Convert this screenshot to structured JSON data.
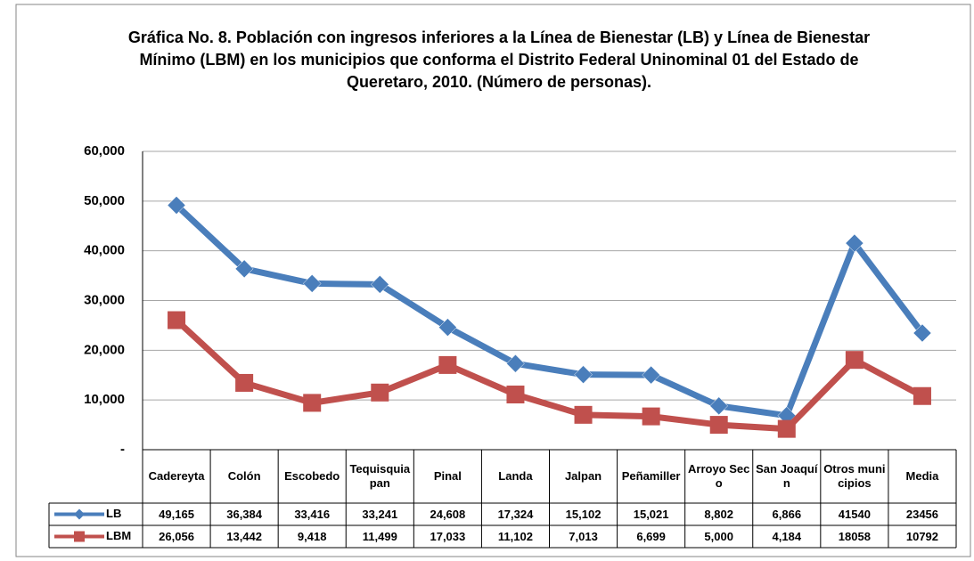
{
  "chart_data": {
    "type": "line",
    "title": "Gráfica No. 8. Población con ingresos inferiores a la  Línea de Bienestar (LB) y Línea de Bienestar Mínimo (LBM) en los municipios que conforma el Distrito Federal Uninominal  01 del Estado de Queretaro, 2010. (Número de personas).",
    "categories": [
      "Cadereyta",
      "Colón",
      "Escobedo",
      "Tequisquiapan",
      "Pinal",
      "Landa",
      "Jalpan",
      "Peñamiller",
      "Arroyo Seco",
      "San Joaquín",
      "Otros municipios",
      "Media"
    ],
    "series": [
      {
        "name": "LB",
        "color": "#4a7ebb",
        "values": [
          49165,
          36384,
          33416,
          33241,
          24608,
          17324,
          15102,
          15021,
          8802,
          6866,
          41540,
          23456
        ],
        "value_labels": [
          "49,165",
          "36,384",
          "33,416",
          "33,241",
          "24,608",
          "17,324",
          "15,102",
          "15,021",
          "8,802",
          "6,866",
          "41540",
          "23456"
        ]
      },
      {
        "name": "LBM",
        "color": "#c0504d",
        "values": [
          26056,
          13442,
          9418,
          11499,
          17033,
          11102,
          7013,
          6699,
          5000,
          4184,
          18058,
          10792
        ],
        "value_labels": [
          "26,056",
          "13,442",
          "9,418",
          "11,499",
          "17,033",
          "11,102",
          "7,013",
          "6,699",
          "5,000",
          "4,184",
          "18058",
          "10792"
        ]
      }
    ],
    "ylim": [
      0,
      60000
    ],
    "yticks": [
      {
        "value": 0,
        "label": "-"
      },
      {
        "value": 10000,
        "label": "10,000"
      },
      {
        "value": 20000,
        "label": "20,000"
      },
      {
        "value": 30000,
        "label": "30,000"
      },
      {
        "value": 40000,
        "label": "40,000"
      },
      {
        "value": 50000,
        "label": "50,000"
      },
      {
        "value": 60000,
        "label": "60,000"
      }
    ],
    "grid": true
  }
}
